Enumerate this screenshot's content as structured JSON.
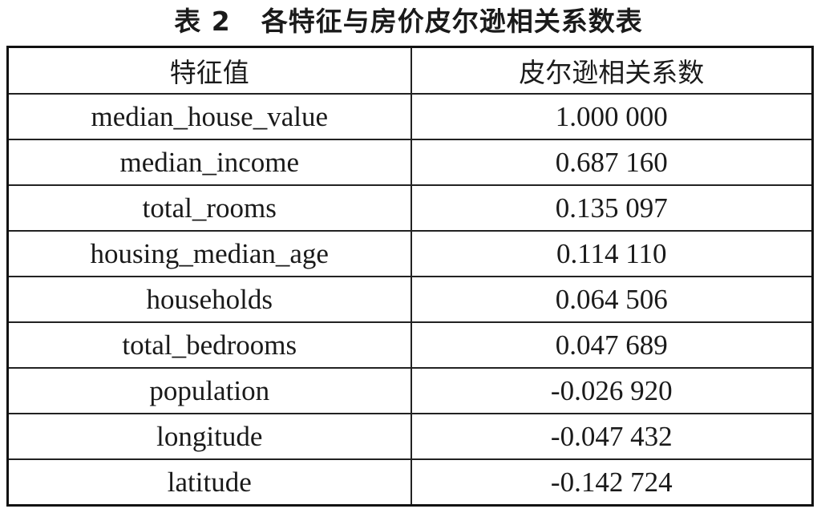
{
  "caption": {
    "label": "表 2",
    "title": "各特征与房价皮尔逊相关系数表"
  },
  "table": {
    "headers": [
      "特征值",
      "皮尔逊相关系数"
    ],
    "rows": [
      [
        "median_house_value",
        "1.000 000"
      ],
      [
        "median_income",
        "0.687 160"
      ],
      [
        "total_rooms",
        "0.135 097"
      ],
      [
        "housing_median_age",
        "0.114 110"
      ],
      [
        "households",
        "0.064 506"
      ],
      [
        "total_bedrooms",
        "0.047 689"
      ],
      [
        "population",
        "-0.026 920"
      ],
      [
        "longitude",
        "-0.047 432"
      ],
      [
        "latitude",
        "-0.142 724"
      ]
    ]
  }
}
